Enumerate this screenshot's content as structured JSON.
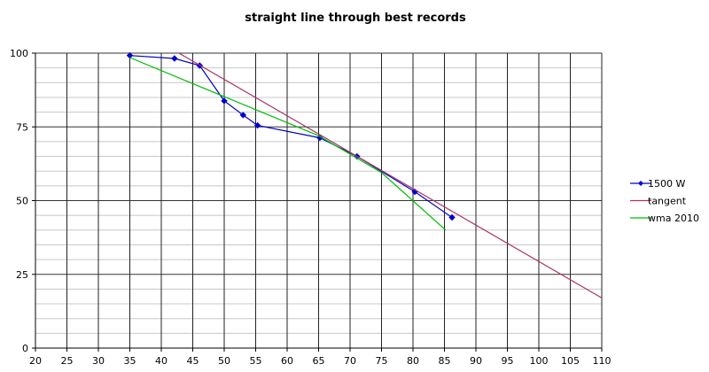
{
  "chart_data": {
    "type": "line",
    "title": "straight line through best records",
    "xlabel": "",
    "ylabel": "",
    "xlim": [
      20,
      110
    ],
    "ylim": [
      0,
      100
    ],
    "x_ticks": [
      20,
      25,
      30,
      35,
      40,
      45,
      50,
      55,
      60,
      65,
      70,
      75,
      80,
      85,
      90,
      95,
      100,
      105,
      110
    ],
    "y_ticks": [
      0,
      25,
      50,
      75,
      100
    ],
    "y_minor_step": 5,
    "grid": true,
    "legend_position": "right",
    "series": [
      {
        "name": "1500 W",
        "color": "#0000cc",
        "marker": "diamond",
        "points": [
          [
            35,
            99.2
          ],
          [
            42.1,
            98.2
          ],
          [
            46.1,
            95.8
          ],
          [
            50,
            83.8
          ],
          [
            53,
            79
          ],
          [
            55.3,
            75.5
          ],
          [
            65.2,
            71.3
          ],
          [
            71.1,
            65
          ],
          [
            80.3,
            53
          ],
          [
            86.2,
            44.3
          ]
        ]
      },
      {
        "name": "tangent",
        "color": "#aa3366",
        "marker": "none",
        "points": [
          [
            42.8,
            100
          ],
          [
            110,
            17
          ]
        ]
      },
      {
        "name": "wma 2010",
        "color": "#00bb00",
        "marker": "none",
        "points": [
          [
            35,
            98.5
          ],
          [
            65,
            72
          ],
          [
            75,
            59.5
          ],
          [
            85.2,
            40
          ]
        ]
      }
    ]
  }
}
